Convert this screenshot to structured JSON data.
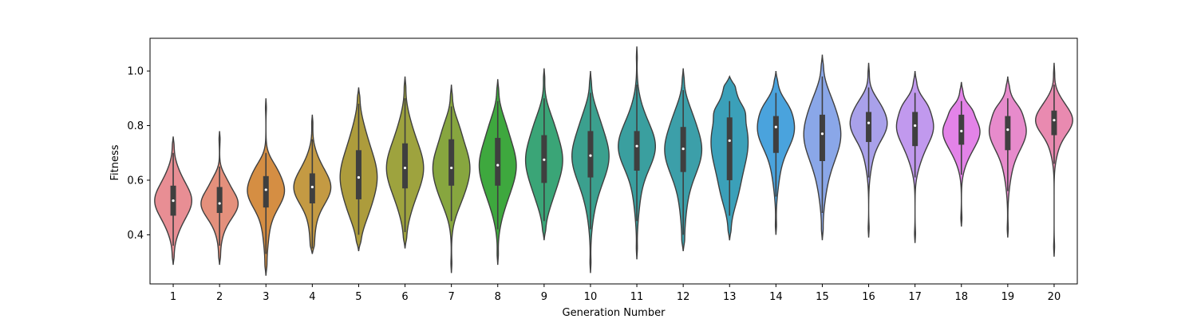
{
  "chart_data": {
    "type": "violin",
    "title": "",
    "xlabel": "Generation Number",
    "ylabel": "Fitness",
    "ylim": [
      0.22,
      1.12
    ],
    "yticks": [
      0.4,
      0.6,
      0.8,
      1.0
    ],
    "ytick_labels": [
      "0.4",
      "0.6",
      "0.8",
      "1.0"
    ],
    "grid": false,
    "categories": [
      "1",
      "2",
      "3",
      "4",
      "5",
      "6",
      "7",
      "8",
      "9",
      "10",
      "11",
      "12",
      "13",
      "14",
      "15",
      "16",
      "17",
      "18",
      "19",
      "20"
    ],
    "violins": [
      {
        "min": 0.29,
        "max": 0.76,
        "q1": 0.47,
        "median": 0.525,
        "q3": 0.58,
        "whisker_low": 0.36,
        "whisker_high": 0.7,
        "color": "#e88e94"
      },
      {
        "min": 0.29,
        "max": 0.78,
        "q1": 0.48,
        "median": 0.515,
        "q3": 0.575,
        "whisker_low": 0.36,
        "whisker_high": 0.65,
        "color": "#e4907c"
      },
      {
        "min": 0.25,
        "max": 0.9,
        "q1": 0.5,
        "median": 0.565,
        "q3": 0.615,
        "whisker_low": 0.33,
        "whisker_high": 0.7,
        "color": "#d58e43"
      },
      {
        "min": 0.33,
        "max": 0.84,
        "q1": 0.515,
        "median": 0.575,
        "q3": 0.625,
        "whisker_low": 0.35,
        "whisker_high": 0.75,
        "color": "#c49a43"
      },
      {
        "min": 0.34,
        "max": 0.94,
        "q1": 0.53,
        "median": 0.61,
        "q3": 0.71,
        "whisker_low": 0.4,
        "whisker_high": 0.88,
        "color": "#ad9c3c"
      },
      {
        "min": 0.35,
        "max": 0.98,
        "q1": 0.57,
        "median": 0.645,
        "q3": 0.735,
        "whisker_low": 0.41,
        "whisker_high": 0.9,
        "color": "#9ea33e"
      },
      {
        "min": 0.26,
        "max": 0.95,
        "q1": 0.58,
        "median": 0.645,
        "q3": 0.75,
        "whisker_low": 0.45,
        "whisker_high": 0.87,
        "color": "#87a63f"
      },
      {
        "min": 0.29,
        "max": 0.97,
        "q1": 0.58,
        "median": 0.655,
        "q3": 0.755,
        "whisker_low": 0.42,
        "whisker_high": 0.89,
        "color": "#3ea83e"
      },
      {
        "min": 0.38,
        "max": 1.01,
        "q1": 0.59,
        "median": 0.675,
        "q3": 0.765,
        "whisker_low": 0.45,
        "whisker_high": 0.9,
        "color": "#3aa577"
      },
      {
        "min": 0.26,
        "max": 1.0,
        "q1": 0.61,
        "median": 0.69,
        "q3": 0.78,
        "whisker_low": 0.42,
        "whisker_high": 0.92,
        "color": "#3ba08e"
      },
      {
        "min": 0.31,
        "max": 1.09,
        "q1": 0.635,
        "median": 0.725,
        "q3": 0.78,
        "whisker_low": 0.45,
        "whisker_high": 0.95,
        "color": "#3a9f9f"
      },
      {
        "min": 0.34,
        "max": 1.01,
        "q1": 0.63,
        "median": 0.715,
        "q3": 0.795,
        "whisker_low": 0.4,
        "whisker_high": 0.93,
        "color": "#3c9fa9"
      },
      {
        "min": 0.38,
        "max": 0.98,
        "q1": 0.6,
        "median": 0.745,
        "q3": 0.83,
        "whisker_low": 0.47,
        "whisker_high": 0.89,
        "color": "#3ba0b9"
      },
      {
        "min": 0.4,
        "max": 1.0,
        "q1": 0.7,
        "median": 0.795,
        "q3": 0.835,
        "whisker_low": 0.54,
        "whisker_high": 0.92,
        "color": "#4aa3dd"
      },
      {
        "min": 0.38,
        "max": 1.06,
        "q1": 0.67,
        "median": 0.77,
        "q3": 0.84,
        "whisker_low": 0.48,
        "whisker_high": 0.98,
        "color": "#8aa7e8"
      },
      {
        "min": 0.39,
        "max": 1.03,
        "q1": 0.74,
        "median": 0.81,
        "q3": 0.85,
        "whisker_low": 0.61,
        "whisker_high": 0.94,
        "color": "#a9a1ea"
      },
      {
        "min": 0.37,
        "max": 1.0,
        "q1": 0.725,
        "median": 0.8,
        "q3": 0.85,
        "whisker_low": 0.61,
        "whisker_high": 0.92,
        "color": "#c199ee"
      },
      {
        "min": 0.43,
        "max": 0.96,
        "q1": 0.73,
        "median": 0.78,
        "q3": 0.84,
        "whisker_low": 0.62,
        "whisker_high": 0.89,
        "color": "#e383e8"
      },
      {
        "min": 0.39,
        "max": 0.98,
        "q1": 0.71,
        "median": 0.785,
        "q3": 0.835,
        "whisker_low": 0.56,
        "whisker_high": 0.9,
        "color": "#e78bcc"
      },
      {
        "min": 0.32,
        "max": 1.03,
        "q1": 0.765,
        "median": 0.82,
        "q3": 0.855,
        "whisker_low": 0.66,
        "whisker_high": 0.95,
        "color": "#e98ab0"
      }
    ]
  }
}
